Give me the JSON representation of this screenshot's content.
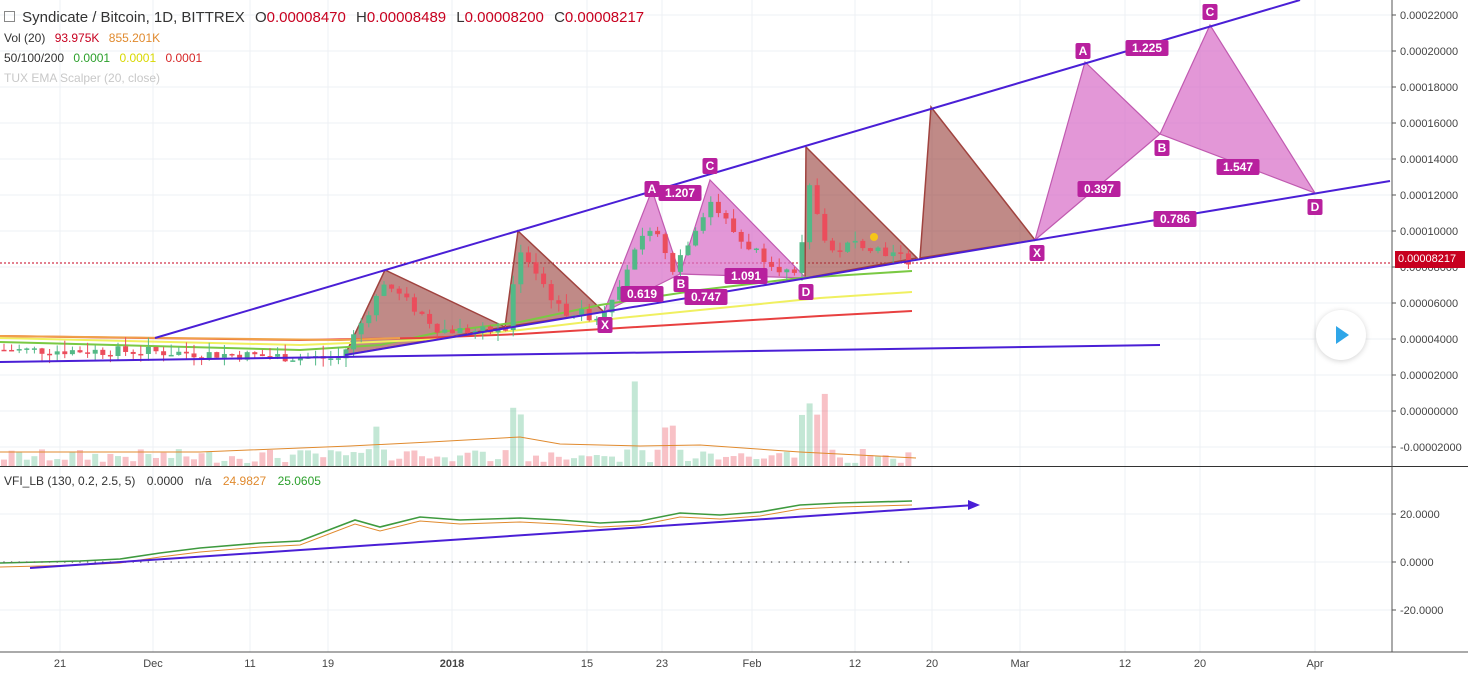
{
  "header": {
    "symbol": "Syndicate / Bitcoin, 1D, BITTREX",
    "ohlc": [
      {
        "k": "O",
        "v": "0.00008470"
      },
      {
        "k": "H",
        "v": "0.00008489"
      },
      {
        "k": "L",
        "v": "0.00008200"
      },
      {
        "k": "C",
        "v": "0.00008217"
      }
    ],
    "vol": {
      "label": "Vol (20)",
      "v1": "93.975K",
      "v2": "855.201K"
    },
    "ma": {
      "label": "50/100/200",
      "v1": "0.0001",
      "v2": "0.0001",
      "v3": "0.0001"
    },
    "tux": "TUX EMA Scalper (20, close)",
    "vfi": {
      "label": "VFI_LB (130, 0.2, 2.5, 5)",
      "v1": "0.0000",
      "v2": "n/a",
      "v3": "24.9827",
      "v4": "25.0605"
    }
  },
  "last_price": "0.00008217",
  "colors": {
    "bull": "#53b987",
    "bear": "#eb4d5c",
    "channel": "#4a1fd6",
    "harmonic": "#d86fc8",
    "label_bg": "#b8209e",
    "bearish_pattern": "#a0433f"
  },
  "chart_data": [
    {
      "type": "candlestick",
      "title": "Syndicate / Bitcoin, 1D, BITTREX",
      "y_ticks": [
        "0.00022000",
        "0.00020000",
        "0.00018000",
        "0.00016000",
        "0.00014000",
        "0.00012000",
        "0.00010000",
        "0.00008000",
        "0.00006000",
        "0.00004000",
        "0.00002000",
        "0.00000000",
        "-0.00002000"
      ],
      "x_ticks": [
        "21",
        "Dec",
        "11",
        "19",
        "2018",
        "15",
        "23",
        "Feb",
        "12",
        "20",
        "Mar",
        "12",
        "20",
        "Apr"
      ],
      "ylim": [
        -2e-05,
        0.00022
      ],
      "series": [
        {
          "name": "MA 50",
          "color": "#7ac943"
        },
        {
          "name": "MA 100",
          "color": "#f0f060"
        },
        {
          "name": "MA 200",
          "color": "#e84040"
        }
      ],
      "harmonic_labels": [
        {
          "text": "A",
          "price": 0.000115
        },
        {
          "text": "1.207",
          "price": 0.000113
        },
        {
          "text": "C",
          "price": 0.000127
        },
        {
          "text": "B",
          "price": 7e-05
        },
        {
          "text": "0.619",
          "price": 6.3e-05
        },
        {
          "text": "0.747",
          "price": 6.1e-05
        },
        {
          "text": "1.091",
          "price": 7.6e-05
        },
        {
          "text": "D",
          "price": 6.3e-05
        },
        {
          "text": "X",
          "price": 5e-05
        },
        {
          "text": "A",
          "price": 0.000193
        },
        {
          "text": "1.225",
          "price": 0.000198
        },
        {
          "text": "C",
          "price": 0.000212
        },
        {
          "text": "B",
          "price": 0.000143
        },
        {
          "text": "1.547",
          "price": 0.000135
        },
        {
          "text": "0.397",
          "price": 0.00012
        },
        {
          "text": "0.786",
          "price": 0.00011
        },
        {
          "text": "D",
          "price": 0.000112
        },
        {
          "text": "X",
          "price": 9.1e-05
        }
      ]
    },
    {
      "type": "line",
      "title": "VFI_LB (130, 0.2, 2.5, 5)",
      "y_ticks": [
        "20.0000",
        "0.0000",
        "-20.0000"
      ],
      "ylim": [
        -30,
        30
      ]
    }
  ]
}
